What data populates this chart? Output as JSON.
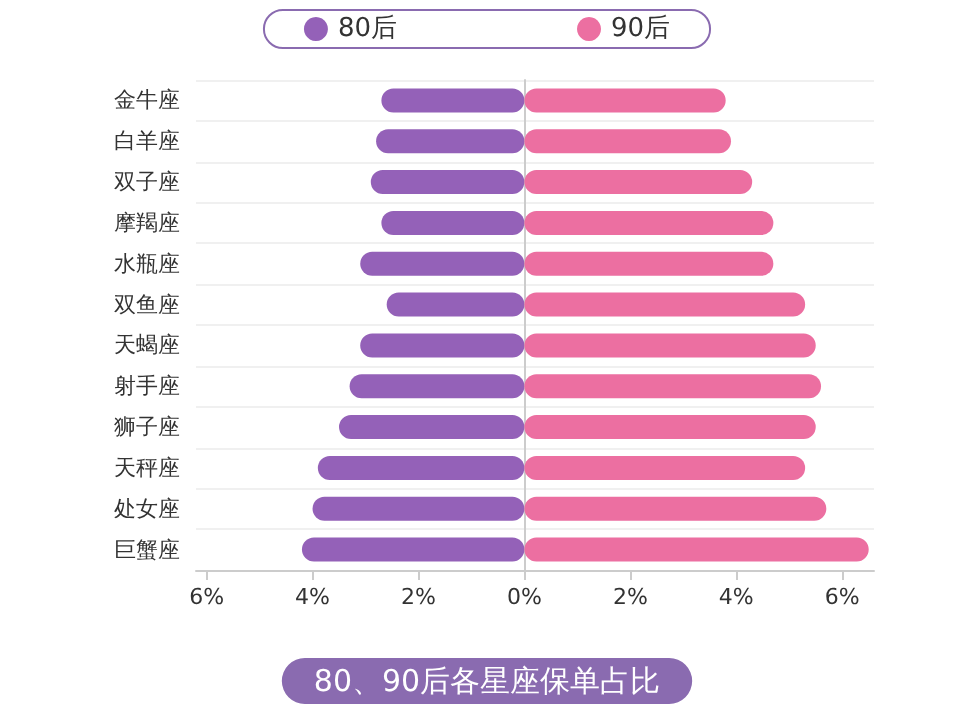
{
  "chart_data": {
    "type": "bar",
    "orientation": "horizontal",
    "title": "80、90后各星座保单占比",
    "categories": [
      "金牛座",
      "白羊座",
      "双子座",
      "摩羯座",
      "水瓶座",
      "双鱼座",
      "天蝎座",
      "射手座",
      "狮子座",
      "天秤座",
      "处女座",
      "巨蟹座"
    ],
    "series": [
      {
        "name": "80后",
        "color": "#9461b8",
        "values": [
          -2.7,
          -2.8,
          -2.9,
          -2.7,
          -3.1,
          -2.6,
          -3.1,
          -3.3,
          -3.5,
          -3.9,
          -4.0,
          -4.2
        ]
      },
      {
        "name": "90后",
        "color": "#ec6fa1",
        "values": [
          3.8,
          3.9,
          4.3,
          4.7,
          4.7,
          5.3,
          5.5,
          5.6,
          5.5,
          5.3,
          5.7,
          6.5
        ]
      }
    ],
    "xlim": [
      -6.2,
      6.6
    ],
    "xticks": [
      {
        "value": -6,
        "label": "6%"
      },
      {
        "value": -4,
        "label": "4%"
      },
      {
        "value": -2,
        "label": "2%"
      },
      {
        "value": 0,
        "label": "0%"
      },
      {
        "value": 2,
        "label": "2%"
      },
      {
        "value": 4,
        "label": "4%"
      },
      {
        "value": 6,
        "label": "6%"
      }
    ],
    "stacked": true,
    "grid": "y",
    "legend": "top"
  }
}
